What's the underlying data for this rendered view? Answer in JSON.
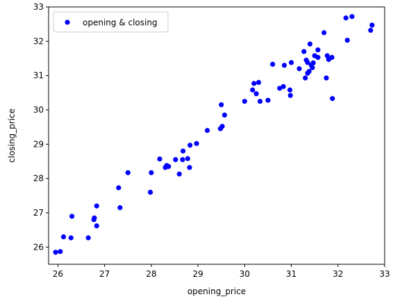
{
  "chart_data": {
    "type": "scatter",
    "title": "",
    "xlabel": "opening_price",
    "ylabel": "closing_price",
    "xlim": [
      25.8,
      33.0
    ],
    "ylim": [
      25.5,
      33.0
    ],
    "xticks": [
      26,
      27,
      28,
      29,
      30,
      31,
      32,
      33
    ],
    "yticks": [
      26,
      27,
      28,
      29,
      30,
      31,
      32,
      33
    ],
    "grid": false,
    "legend_position": "top-left",
    "series": [
      {
        "name": "opening & closing",
        "color": "#0000ff",
        "points": [
          [
            25.95,
            25.85
          ],
          [
            26.05,
            25.87
          ],
          [
            26.12,
            26.3
          ],
          [
            26.28,
            26.27
          ],
          [
            26.3,
            26.9
          ],
          [
            26.65,
            26.27
          ],
          [
            26.77,
            26.8
          ],
          [
            26.78,
            26.85
          ],
          [
            26.83,
            26.62
          ],
          [
            26.83,
            27.2
          ],
          [
            27.3,
            27.73
          ],
          [
            27.33,
            27.15
          ],
          [
            27.5,
            28.17
          ],
          [
            27.98,
            27.6
          ],
          [
            28.0,
            28.17
          ],
          [
            28.18,
            28.57
          ],
          [
            28.3,
            28.32
          ],
          [
            28.33,
            28.38
          ],
          [
            28.37,
            28.35
          ],
          [
            28.52,
            28.55
          ],
          [
            28.6,
            28.13
          ],
          [
            28.67,
            28.55
          ],
          [
            28.68,
            28.8
          ],
          [
            28.78,
            28.58
          ],
          [
            28.82,
            28.32
          ],
          [
            28.83,
            28.97
          ],
          [
            28.97,
            29.02
          ],
          [
            29.2,
            29.4
          ],
          [
            29.48,
            29.45
          ],
          [
            29.5,
            30.15
          ],
          [
            29.52,
            29.52
          ],
          [
            29.57,
            29.85
          ],
          [
            30.0,
            30.25
          ],
          [
            30.17,
            30.58
          ],
          [
            30.2,
            30.77
          ],
          [
            30.25,
            30.47
          ],
          [
            30.3,
            30.8
          ],
          [
            30.33,
            30.25
          ],
          [
            30.5,
            30.28
          ],
          [
            30.6,
            31.33
          ],
          [
            30.75,
            30.63
          ],
          [
            30.83,
            30.68
          ],
          [
            30.85,
            31.3
          ],
          [
            30.97,
            30.58
          ],
          [
            30.98,
            30.42
          ],
          [
            31.0,
            31.38
          ],
          [
            31.17,
            31.2
          ],
          [
            31.27,
            31.7
          ],
          [
            31.3,
            30.93
          ],
          [
            31.32,
            31.45
          ],
          [
            31.35,
            31.38
          ],
          [
            31.35,
            31.07
          ],
          [
            31.38,
            31.12
          ],
          [
            31.4,
            31.92
          ],
          [
            31.43,
            31.3
          ],
          [
            31.45,
            31.23
          ],
          [
            31.47,
            31.37
          ],
          [
            31.5,
            31.58
          ],
          [
            31.57,
            31.53
          ],
          [
            31.57,
            31.75
          ],
          [
            31.7,
            32.25
          ],
          [
            31.75,
            30.93
          ],
          [
            31.77,
            31.58
          ],
          [
            31.8,
            31.47
          ],
          [
            31.87,
            31.53
          ],
          [
            31.88,
            30.33
          ],
          [
            32.17,
            32.68
          ],
          [
            32.2,
            32.03
          ],
          [
            32.3,
            32.72
          ],
          [
            32.7,
            32.32
          ],
          [
            32.73,
            32.47
          ]
        ]
      }
    ]
  }
}
